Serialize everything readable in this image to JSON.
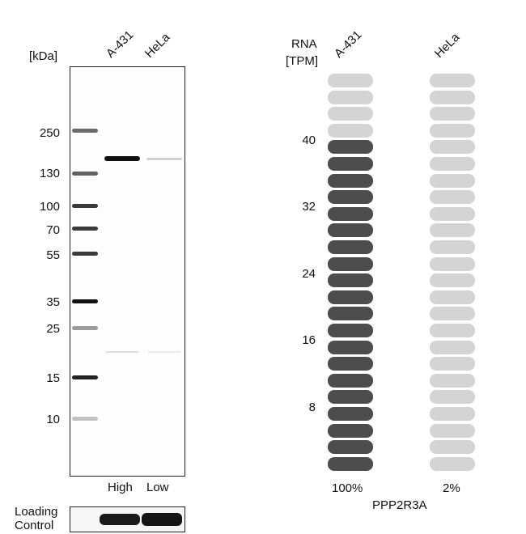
{
  "blot": {
    "unit_label": "[kDa]",
    "lanes": [
      "A-431",
      "HeLa"
    ],
    "lane_levels": [
      "High",
      "Low"
    ],
    "mw_markers": [
      "250",
      "130",
      "100",
      "70",
      "55",
      "35",
      "25",
      "15",
      "10"
    ],
    "loading_control_label": [
      "Loading",
      "Control"
    ]
  },
  "rna": {
    "axis_label": [
      "RNA",
      "[TPM]"
    ],
    "samples": [
      "A-431",
      "HeLa"
    ],
    "ticks": [
      "40",
      "32",
      "24",
      "16",
      "8"
    ],
    "percentages": [
      "100%",
      "2%"
    ],
    "gene": "PPP2R3A",
    "total_cells": 24,
    "a431_filled_cells": 20,
    "hela_filled_cells": 0,
    "colors": {
      "filled_dark": "#4d4d4d",
      "empty_light": "#d4d4d4"
    }
  }
}
